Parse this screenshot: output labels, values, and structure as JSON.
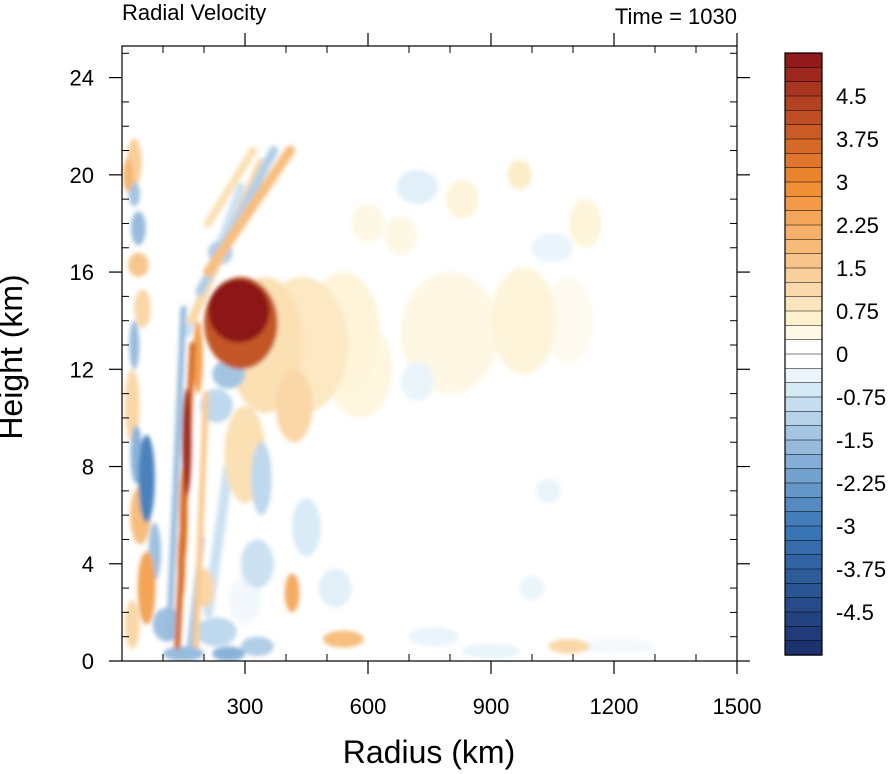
{
  "chart_data": {
    "type": "heatmap",
    "title": "Radial Velocity",
    "subtitle": "Time = 1030",
    "xlabel": "Radius (km)",
    "ylabel": "Height (km)",
    "xlim": [
      0,
      1500
    ],
    "ylim": [
      0,
      25.3
    ],
    "x_ticks": [
      300,
      600,
      900,
      1200,
      1500
    ],
    "x_tick_labels": [
      "300",
      "600",
      "900",
      "1200",
      "1500"
    ],
    "y_ticks": [
      0,
      4,
      8,
      12,
      16,
      20,
      24
    ],
    "y_tick_labels": [
      "0",
      "4",
      "8",
      "12",
      "16",
      "20",
      "24"
    ],
    "colorbar": {
      "min": -5.25,
      "max": 5.25,
      "step": 0.25,
      "tick_values": [
        4.5,
        3.75,
        3,
        2.25,
        1.5,
        0.75,
        0,
        -0.75,
        -1.5,
        -2.25,
        -3,
        -3.75,
        -4.5
      ],
      "tick_labels": [
        "4.5",
        "3.75",
        "3",
        "2.25",
        "1.5",
        "0.75",
        "0",
        "-0.75",
        "-1.5",
        "-2.25",
        "-3",
        "-3.75",
        "-4.5"
      ],
      "colors": {
        "deep_negative": "#1a2f6b",
        "negative": "#3b78b8",
        "light_negative": "#d8ebf7",
        "zero": "#ffffff",
        "light_positive": "#fdf1cf",
        "positive": "#f08a2e",
        "deep_positive": "#8b1419"
      }
    },
    "field_features": [
      {
        "kind": "blob",
        "value": 5.2,
        "x": 285,
        "y": 14.4,
        "rx": 75,
        "ry": 1.3
      },
      {
        "kind": "blob",
        "value": 4.0,
        "x": 290,
        "y": 13.9,
        "rx": 90,
        "ry": 1.9
      },
      {
        "kind": "blob",
        "value": 1.0,
        "x": 350,
        "y": 13.0,
        "rx": 90,
        "ry": 2.8
      },
      {
        "kind": "blob",
        "value": 0.8,
        "x": 440,
        "y": 13.0,
        "rx": 110,
        "ry": 2.8
      },
      {
        "kind": "blob",
        "value": 0.5,
        "x": 540,
        "y": 13.5,
        "rx": 90,
        "ry": 2.5
      },
      {
        "kind": "blob",
        "value": 0.45,
        "x": 580,
        "y": 12.0,
        "rx": 80,
        "ry": 2.0
      },
      {
        "kind": "blob",
        "value": 0.4,
        "x": 800,
        "y": 13.5,
        "rx": 120,
        "ry": 2.5
      },
      {
        "kind": "blob",
        "value": 0.5,
        "x": 980,
        "y": 14.0,
        "rx": 80,
        "ry": 2.2
      },
      {
        "kind": "blob",
        "value": 0.3,
        "x": 1090,
        "y": 14.0,
        "rx": 60,
        "ry": 1.8
      },
      {
        "kind": "blob",
        "value": 0.5,
        "x": 1130,
        "y": 18.0,
        "rx": 40,
        "ry": 1.0
      },
      {
        "kind": "blob",
        "value": 0.7,
        "x": 970,
        "y": 20.0,
        "rx": 30,
        "ry": 0.6
      },
      {
        "kind": "blob",
        "value": 0.5,
        "x": 830,
        "y": 19.0,
        "rx": 40,
        "ry": 0.8
      },
      {
        "kind": "blob",
        "value": 0.4,
        "x": 600,
        "y": 18.0,
        "rx": 40,
        "ry": 0.8
      },
      {
        "kind": "blob",
        "value": 0.4,
        "x": 680,
        "y": 17.5,
        "rx": 40,
        "ry": 0.8
      },
      {
        "kind": "blob",
        "value": 1.2,
        "x": 420,
        "y": 10.5,
        "rx": 45,
        "ry": 1.5
      },
      {
        "kind": "blob",
        "value": 1.0,
        "x": 300,
        "y": 8.5,
        "rx": 50,
        "ry": 2.0
      },
      {
        "kind": "blob",
        "value": 2.2,
        "x": 415,
        "y": 2.8,
        "rx": 18,
        "ry": 0.8
      },
      {
        "kind": "blob",
        "value": 1.8,
        "x": 540,
        "y": 0.9,
        "rx": 50,
        "ry": 0.35
      },
      {
        "kind": "blob",
        "value": 1.2,
        "x": 1090,
        "y": 0.6,
        "rx": 50,
        "ry": 0.3
      },
      {
        "kind": "blob",
        "value": 1.4,
        "x": 30,
        "y": 20.5,
        "rx": 18,
        "ry": 1.0
      },
      {
        "kind": "blob",
        "value": 2.0,
        "x": 15,
        "y": 20.0,
        "rx": 12,
        "ry": 0.7
      },
      {
        "kind": "blob",
        "value": 1.6,
        "x": 40,
        "y": 16.3,
        "rx": 25,
        "ry": 0.5
      },
      {
        "kind": "blob",
        "value": 1.2,
        "x": 50,
        "y": 14.5,
        "rx": 20,
        "ry": 0.8
      },
      {
        "kind": "blob",
        "value": 1.2,
        "x": 25,
        "y": 10.5,
        "rx": 18,
        "ry": 1.5
      },
      {
        "kind": "blob",
        "value": 1.8,
        "x": 45,
        "y": 6.0,
        "rx": 25,
        "ry": 1.2
      },
      {
        "kind": "blob",
        "value": 2.4,
        "x": 60,
        "y": 3.0,
        "rx": 22,
        "ry": 1.5
      },
      {
        "kind": "blob",
        "value": 1.2,
        "x": 25,
        "y": 1.5,
        "rx": 18,
        "ry": 1.0
      },
      {
        "kind": "blob",
        "value": 1.2,
        "x": 200,
        "y": 3.0,
        "rx": 25,
        "ry": 0.8
      },
      {
        "kind": "blob",
        "value": 4.8,
        "x": 158,
        "y": 9.0,
        "rx": 11,
        "ry": 2.2
      },
      {
        "kind": "blob",
        "value": 3.0,
        "x": 150,
        "y": 6.0,
        "rx": 10,
        "ry": 2.0
      },
      {
        "kind": "blob",
        "value": 3.0,
        "x": 145,
        "y": 4.0,
        "rx": 9,
        "ry": 1.5
      },
      {
        "kind": "blob",
        "value": 2.5,
        "x": 185,
        "y": 12.5,
        "rx": 12,
        "ry": 1.5
      },
      {
        "kind": "blob",
        "value": -2.8,
        "x": 60,
        "y": 7.5,
        "rx": 20,
        "ry": 1.8
      },
      {
        "kind": "blob",
        "value": -1.8,
        "x": 35,
        "y": 8.5,
        "rx": 14,
        "ry": 1.2
      },
      {
        "kind": "blob",
        "value": -1.6,
        "x": 30,
        "y": 13.0,
        "rx": 12,
        "ry": 1.0
      },
      {
        "kind": "blob",
        "value": -1.6,
        "x": 40,
        "y": 17.8,
        "rx": 18,
        "ry": 0.7
      },
      {
        "kind": "blob",
        "value": -1.4,
        "x": 30,
        "y": 19.2,
        "rx": 14,
        "ry": 0.5
      },
      {
        "kind": "blob",
        "value": -1.5,
        "x": 80,
        "y": 4.5,
        "rx": 15,
        "ry": 1.2
      },
      {
        "kind": "blob",
        "value": -1.5,
        "x": 110,
        "y": 1.5,
        "rx": 35,
        "ry": 0.7
      },
      {
        "kind": "blob",
        "value": -1.6,
        "x": 150,
        "y": 0.3,
        "rx": 50,
        "ry": 0.3
      },
      {
        "kind": "blob",
        "value": -1.8,
        "x": 260,
        "y": 0.3,
        "rx": 40,
        "ry": 0.3
      },
      {
        "kind": "blob",
        "value": -1.2,
        "x": 330,
        "y": 0.6,
        "rx": 40,
        "ry": 0.4
      },
      {
        "kind": "blob",
        "value": -1.0,
        "x": 230,
        "y": 1.2,
        "rx": 50,
        "ry": 0.6
      },
      {
        "kind": "blob",
        "value": -1.4,
        "x": 260,
        "y": 11.8,
        "rx": 40,
        "ry": 0.6
      },
      {
        "kind": "blob",
        "value": -1.0,
        "x": 230,
        "y": 10.5,
        "rx": 40,
        "ry": 0.7
      },
      {
        "kind": "blob",
        "value": -1.2,
        "x": 240,
        "y": 16.8,
        "rx": 30,
        "ry": 0.5
      },
      {
        "kind": "blob",
        "value": -1.0,
        "x": 340,
        "y": 7.5,
        "rx": 25,
        "ry": 1.5
      },
      {
        "kind": "blob",
        "value": -0.8,
        "x": 330,
        "y": 4.0,
        "rx": 40,
        "ry": 1.0
      },
      {
        "kind": "blob",
        "value": -0.6,
        "x": 450,
        "y": 5.5,
        "rx": 35,
        "ry": 1.2
      },
      {
        "kind": "blob",
        "value": -0.5,
        "x": 520,
        "y": 3.0,
        "rx": 40,
        "ry": 0.8
      },
      {
        "kind": "blob",
        "value": -0.5,
        "x": 720,
        "y": 19.5,
        "rx": 50,
        "ry": 0.7
      },
      {
        "kind": "blob",
        "value": -0.4,
        "x": 1050,
        "y": 17.0,
        "rx": 50,
        "ry": 0.6
      },
      {
        "kind": "blob",
        "value": -0.4,
        "x": 760,
        "y": 1.0,
        "rx": 60,
        "ry": 0.4
      },
      {
        "kind": "blob",
        "value": -0.4,
        "x": 900,
        "y": 0.4,
        "rx": 70,
        "ry": 0.3
      },
      {
        "kind": "blob",
        "value": -0.3,
        "x": 1200,
        "y": 0.6,
        "rx": 100,
        "ry": 0.3
      },
      {
        "kind": "blob",
        "value": -0.4,
        "x": 1000,
        "y": 3.0,
        "rx": 30,
        "ry": 0.5
      },
      {
        "kind": "blob",
        "value": -0.4,
        "x": 1040,
        "y": 7.0,
        "rx": 30,
        "ry": 0.5
      },
      {
        "kind": "blob",
        "value": -0.4,
        "x": 720,
        "y": 11.5,
        "rx": 40,
        "ry": 0.8
      },
      {
        "kind": "blob",
        "value": -0.3,
        "x": 300,
        "y": 2.5,
        "rx": 40,
        "ry": 1.0
      },
      {
        "kind": "band",
        "value": 1.8,
        "x0": 210,
        "y0": 16.0,
        "x1": 410,
        "y1": 21.0,
        "width": 10
      },
      {
        "kind": "band",
        "value": 1.2,
        "x0": 170,
        "y0": 14.0,
        "x1": 340,
        "y1": 20.5,
        "width": 9
      },
      {
        "kind": "band",
        "value": 1.0,
        "x0": 210,
        "y0": 18.0,
        "x1": 320,
        "y1": 21.0,
        "width": 8
      },
      {
        "kind": "band",
        "value": -1.2,
        "x0": 190,
        "y0": 15.2,
        "x1": 370,
        "y1": 21.0,
        "width": 9
      },
      {
        "kind": "band",
        "value": -0.8,
        "x0": 160,
        "y0": 13.5,
        "x1": 290,
        "y1": 19.5,
        "width": 8
      },
      {
        "kind": "band",
        "value": 3.6,
        "x0": 135,
        "y0": 0.6,
        "x1": 172,
        "y1": 13.0,
        "width": 6
      },
      {
        "kind": "band",
        "value": -1.6,
        "x0": 115,
        "y0": 1.0,
        "x1": 150,
        "y1": 14.5,
        "width": 6
      },
      {
        "kind": "band",
        "value": 1.5,
        "x0": 180,
        "y0": 0.5,
        "x1": 205,
        "y1": 11.0,
        "width": 6
      },
      {
        "kind": "band",
        "value": -1.4,
        "x0": 165,
        "y0": 0.5,
        "x1": 195,
        "y1": 5.0,
        "width": 6
      },
      {
        "kind": "band",
        "value": -0.8,
        "x0": 210,
        "y0": 2.0,
        "x1": 260,
        "y1": 8.0,
        "width": 10
      }
    ]
  }
}
